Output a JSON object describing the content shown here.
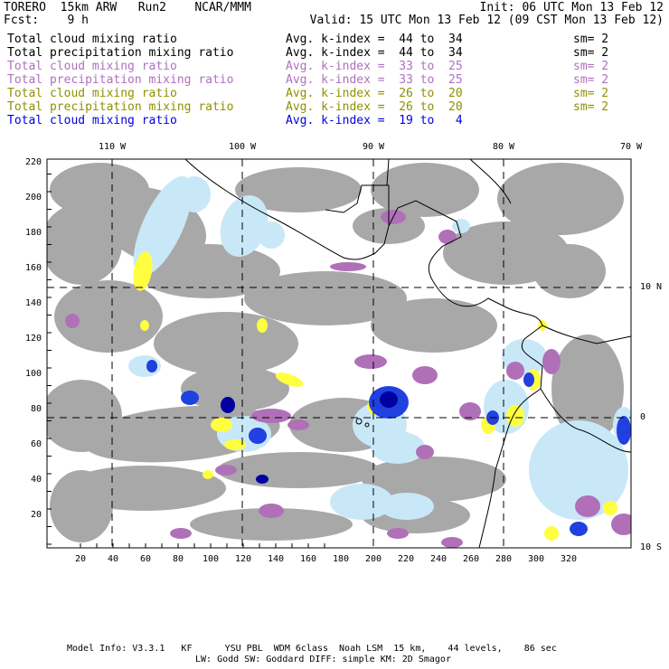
{
  "header": {
    "model": "TORERO  15km ARW   Run2    NCAR/MMM",
    "init": "Init: 06 UTC Mon 13 Feb 12",
    "fcst": "Fcst:    9 h",
    "valid": "Valid: 15 UTC Mon 13 Feb 12 (09 CST Mon 13 Feb 12)"
  },
  "legend": [
    {
      "field": "Total cloud mixing ratio",
      "index": "Avg. k-index =  44 to  34",
      "sm": "sm= 2",
      "color": "#000000"
    },
    {
      "field": "Total precipitation mixing ratio",
      "index": "Avg. k-index =  44 to  34",
      "sm": "sm= 2",
      "color": "#000000"
    },
    {
      "field": "Total cloud mixing ratio",
      "index": "Avg. k-index =  33 to  25",
      "sm": "sm= 2",
      "color": "#b070c0"
    },
    {
      "field": "Total precipitation mixing ratio",
      "index": "Avg. k-index =  33 to  25",
      "sm": "sm= 2",
      "color": "#b070c0"
    },
    {
      "field": "Total cloud mixing ratio",
      "index": "Avg. k-index =  26 to  20",
      "sm": "sm= 2",
      "color": "#909000"
    },
    {
      "field": "Total precipitation mixing ratio",
      "index": "Avg. k-index =  26 to  20",
      "sm": "sm= 2",
      "color": "#909000"
    },
    {
      "field": "Total cloud mixing ratio",
      "index": "Avg. k-index =  19 to   4",
      "sm": "",
      "color": "#0000e0"
    }
  ],
  "map": {
    "lon_labels": [
      "110 W",
      "100 W",
      "90 W",
      "80 W",
      "70 W"
    ],
    "lat_labels": [
      "10 N",
      "0",
      "10 S"
    ],
    "y_ticks": [
      "220",
      "200",
      "180",
      "160",
      "140",
      "120",
      "100",
      "80",
      "60",
      "40",
      "20"
    ],
    "x_ticks": [
      "20",
      "40",
      "60",
      "80",
      "100",
      "120",
      "140",
      "160",
      "180",
      "200",
      "220",
      "240",
      "260",
      "280",
      "300",
      "320"
    ],
    "colors": {
      "gray": "#a8a8a8",
      "purple": "#b070b8",
      "yellow": "#ffff40",
      "lightblue": "#c8e8f8",
      "blue": "#2040e0",
      "darkblue": "#0000a0"
    }
  },
  "footer": {
    "line1": "Model Info: V3.3.1   KF      YSU PBL  WDM 6class  Noah LSM  15 km,    44 levels,    86 sec",
    "line2": "LW: Godd SW: Goddard DIFF: simple KM: 2D Smagor"
  }
}
